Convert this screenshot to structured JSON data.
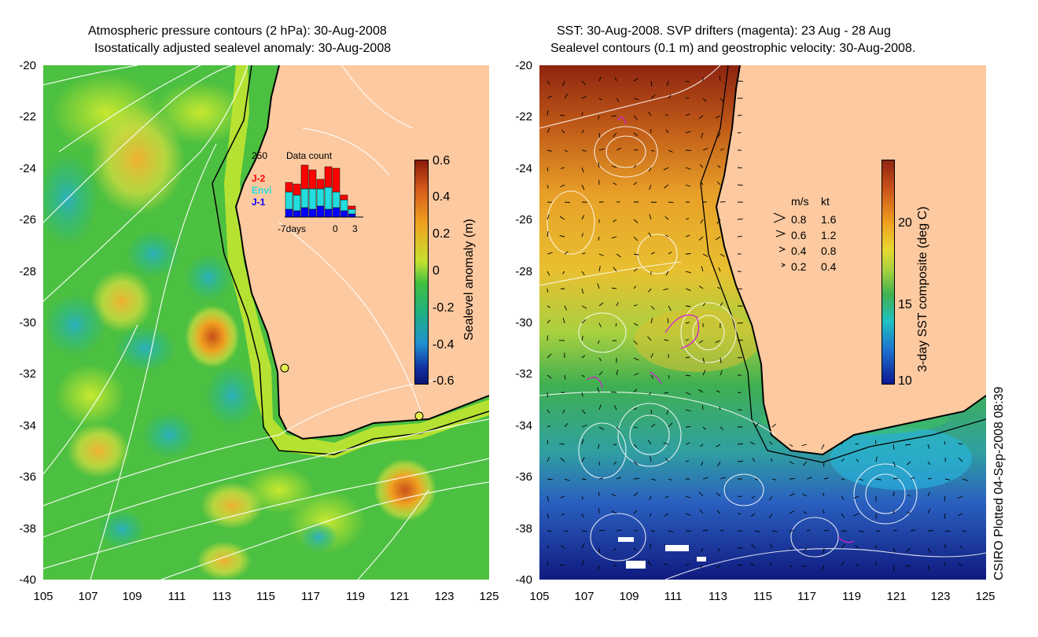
{
  "left_panel": {
    "title_line1": "Atmospheric pressure contours (2 hPa): 30-Aug-2008",
    "title_line2": "Isostatically adjusted sealevel anomaly: 30-Aug-2008",
    "colorbar_label": "Sealevel anomaly (m)",
    "colorbar_ticks": [
      "0.6",
      "0.4",
      "0.2",
      "0",
      "-0.2",
      "-0.4",
      "-0.6"
    ],
    "inset": {
      "max_label": "250",
      "title": "Data count",
      "legend": [
        "J-2",
        "Envi",
        "J-1"
      ],
      "legend_colors": [
        "#ff0000",
        "#22dddd",
        "#0000ff"
      ],
      "x_labels": [
        "-7days",
        "0",
        "3"
      ]
    }
  },
  "right_panel": {
    "title_line1": "SST: 30-Aug-2008. SVP drifters (magenta): 23 Aug - 28 Aug",
    "title_line2": "Sealevel contours (0.1 m) and geostrophic velocity: 30-Aug-2008.",
    "colorbar_label": "3-day SST composite (deg C)",
    "colorbar_ticks": [
      "20",
      "15",
      "10"
    ],
    "velocity_legend": {
      "header_ms": "m/s",
      "header_kt": "kt",
      "rows": [
        [
          "0.8",
          "1.6"
        ],
        [
          "0.6",
          "1.2"
        ],
        [
          "0.4",
          "0.8"
        ],
        [
          "0.2",
          "0.4"
        ]
      ]
    }
  },
  "axes": {
    "y_ticks": [
      "-20",
      "-22",
      "-24",
      "-26",
      "-28",
      "-30",
      "-32",
      "-34",
      "-36",
      "-38",
      "-40"
    ],
    "x_ticks": [
      "105",
      "107",
      "109",
      "111",
      "113",
      "115",
      "117",
      "119",
      "121",
      "123",
      "125"
    ]
  },
  "side_note": "CSIRO Plotted 04-Sep-2008 08:39",
  "colors": {
    "land": "#fcc9a0",
    "coast": "#000000",
    "contours": "#ffffff"
  }
}
